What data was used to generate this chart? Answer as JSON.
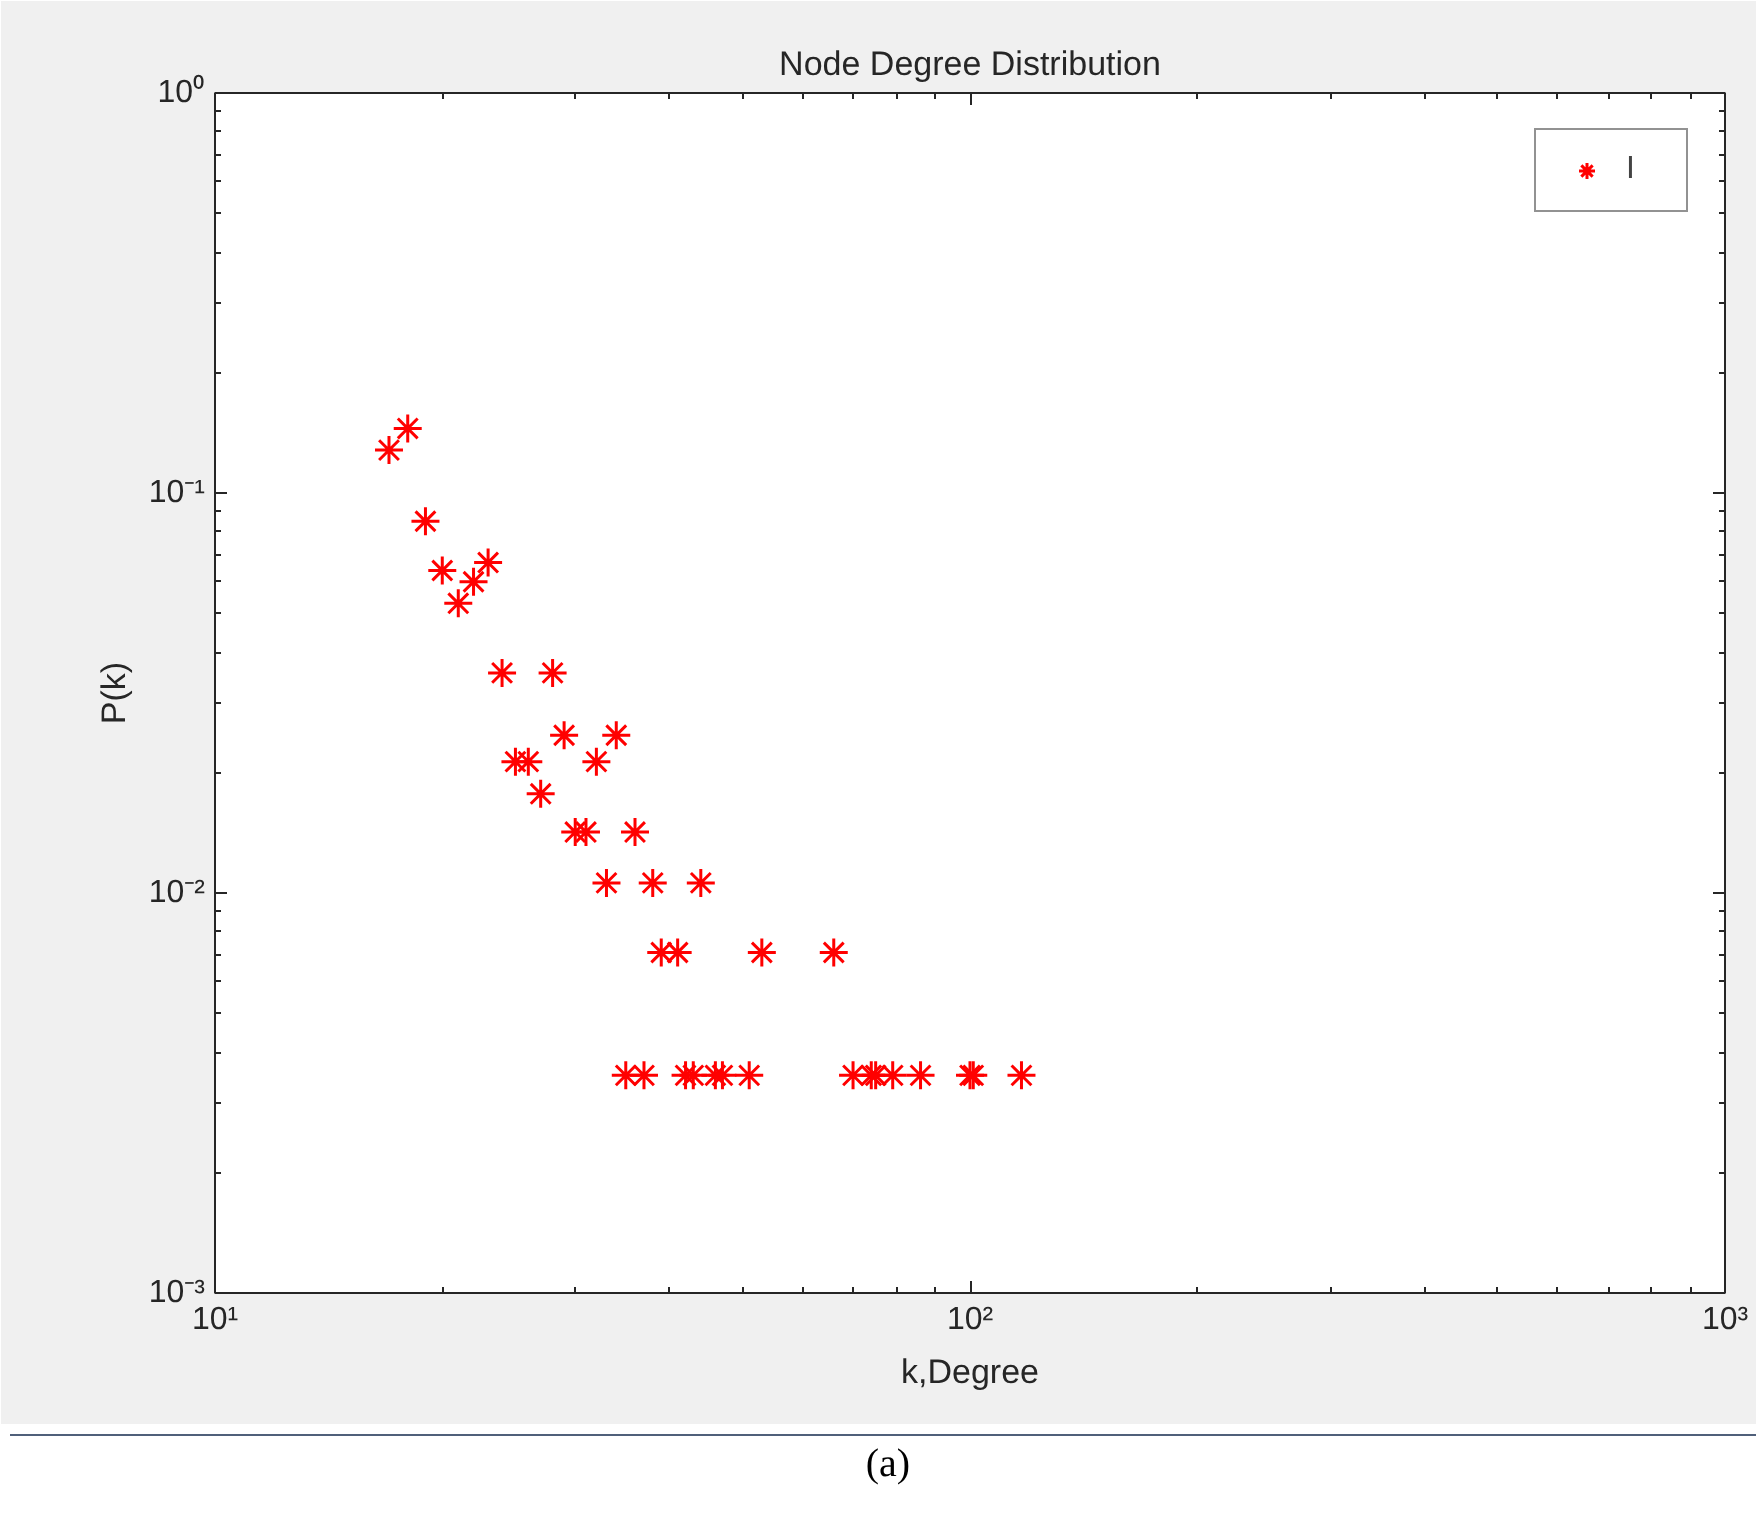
{
  "chart_data": {
    "type": "scatter",
    "title": "Node Degree Distribution",
    "xlabel": "k,Degree",
    "ylabel": "P(k)",
    "x": [
      17,
      18,
      19,
      20,
      21,
      22,
      23,
      24,
      28,
      25,
      26,
      27,
      29,
      30,
      31,
      32,
      34,
      36,
      33,
      38,
      44,
      39,
      41,
      53,
      66,
      35,
      37,
      42,
      43,
      46,
      47,
      51,
      70,
      74,
      75,
      79,
      86,
      100,
      101,
      117
    ],
    "series": [
      {
        "name": "I",
        "color": "#ff0000",
        "values": [
          0.128,
          0.145,
          0.085,
          0.064,
          0.053,
          0.06,
          0.067,
          0.0355,
          0.0355,
          0.0213,
          0.0213,
          0.0177,
          0.0248,
          0.0142,
          0.0142,
          0.0213,
          0.0248,
          0.0142,
          0.0106,
          0.0106,
          0.0106,
          0.0071,
          0.0071,
          0.0071,
          0.0071,
          0.0035,
          0.0035,
          0.0035,
          0.0035,
          0.0035,
          0.0035,
          0.0035,
          0.0035,
          0.0035,
          0.0035,
          0.0035,
          0.0035,
          0.0035,
          0.0035,
          0.0035
        ]
      }
    ],
    "log": "xy",
    "xlim": [
      10,
      1000
    ],
    "ylim": [
      0.001,
      1
    ],
    "xticks": [
      {
        "value": 10,
        "label": "10¹"
      },
      {
        "value": 100,
        "label": "10²"
      },
      {
        "value": 1000,
        "label": "10³"
      }
    ],
    "yticks": [
      {
        "value": 0.001,
        "label": "10⁻³"
      },
      {
        "value": 0.01,
        "label": "10⁻²"
      },
      {
        "value": 0.1,
        "label": "10⁻¹"
      },
      {
        "value": 1,
        "label": "10⁰"
      }
    ],
    "marker": "cross",
    "legend": "top right",
    "grid": false,
    "annotations": [
      "(a)"
    ]
  }
}
